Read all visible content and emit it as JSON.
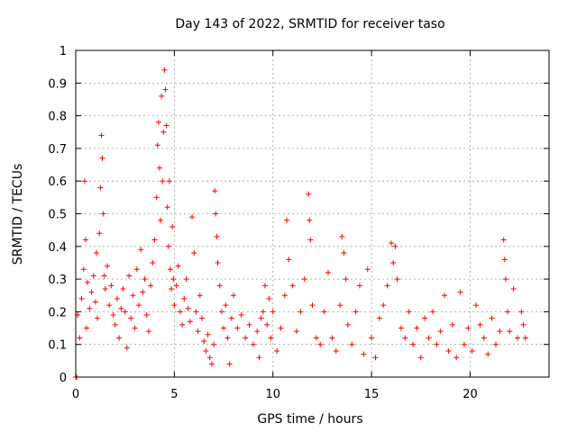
{
  "chart_data": {
    "type": "scatter",
    "title": "Day 143 of 2022, SRMTID for receiver taso",
    "xlabel": "GPS time / hours",
    "ylabel": "SRMTID / TECUs",
    "xlim": [
      0,
      24
    ],
    "ylim": [
      0,
      1
    ],
    "x_ticks": [
      0,
      5,
      10,
      15,
      20
    ],
    "x_tick_labels": [
      "0",
      "5",
      "10",
      "15",
      "20"
    ],
    "y_ticks": [
      0,
      0.1,
      0.2,
      0.3,
      0.4,
      0.5,
      0.6,
      0.7,
      0.8,
      0.9,
      1
    ],
    "y_tick_labels": [
      "0",
      "0.1",
      "0.2",
      "0.3",
      "0.4",
      "0.5",
      "0.6",
      "0.7",
      "0.8",
      "0.9",
      "1"
    ],
    "grid": true,
    "marker": "+",
    "color": "#ff0000",
    "series": [
      {
        "name": "SRMTID",
        "points": [
          [
            0.0,
            0.0
          ],
          [
            0.05,
            0.0
          ],
          [
            0.1,
            0.19
          ],
          [
            0.2,
            0.12
          ],
          [
            0.3,
            0.24
          ],
          [
            0.4,
            0.33
          ],
          [
            0.45,
            0.6
          ],
          [
            0.5,
            0.42
          ],
          [
            0.55,
            0.15
          ],
          [
            0.6,
            0.29
          ],
          [
            0.7,
            0.21
          ],
          [
            0.8,
            0.26
          ],
          [
            0.9,
            0.31
          ],
          [
            1.0,
            0.23
          ],
          [
            1.05,
            0.38
          ],
          [
            1.1,
            0.18
          ],
          [
            1.2,
            0.44
          ],
          [
            1.25,
            0.58
          ],
          [
            1.3,
            0.74
          ],
          [
            1.35,
            0.67
          ],
          [
            1.4,
            0.5
          ],
          [
            1.45,
            0.31
          ],
          [
            1.5,
            0.27
          ],
          [
            1.6,
            0.34
          ],
          [
            1.7,
            0.22
          ],
          [
            1.8,
            0.28
          ],
          [
            1.9,
            0.19
          ],
          [
            2.0,
            0.16
          ],
          [
            2.1,
            0.24
          ],
          [
            2.2,
            0.12
          ],
          [
            2.3,
            0.21
          ],
          [
            2.4,
            0.27
          ],
          [
            2.5,
            0.2
          ],
          [
            2.6,
            0.09
          ],
          [
            2.7,
            0.31
          ],
          [
            2.8,
            0.18
          ],
          [
            2.9,
            0.25
          ],
          [
            3.0,
            0.15
          ],
          [
            3.1,
            0.33
          ],
          [
            3.2,
            0.22
          ],
          [
            3.3,
            0.39
          ],
          [
            3.4,
            0.26
          ],
          [
            3.5,
            0.3
          ],
          [
            3.6,
            0.19
          ],
          [
            3.7,
            0.14
          ],
          [
            3.8,
            0.28
          ],
          [
            3.9,
            0.35
          ],
          [
            4.0,
            0.42
          ],
          [
            4.1,
            0.55
          ],
          [
            4.15,
            0.71
          ],
          [
            4.2,
            0.78
          ],
          [
            4.25,
            0.64
          ],
          [
            4.3,
            0.48
          ],
          [
            4.35,
            0.86
          ],
          [
            4.4,
            0.6
          ],
          [
            4.45,
            0.75
          ],
          [
            4.5,
            0.94
          ],
          [
            4.55,
            0.88
          ],
          [
            4.6,
            0.77
          ],
          [
            4.65,
            0.52
          ],
          [
            4.7,
            0.4
          ],
          [
            4.75,
            0.6
          ],
          [
            4.8,
            0.33
          ],
          [
            4.85,
            0.27
          ],
          [
            4.9,
            0.46
          ],
          [
            4.95,
            0.3
          ],
          [
            5.0,
            0.22
          ],
          [
            5.1,
            0.28
          ],
          [
            5.2,
            0.34
          ],
          [
            5.3,
            0.2
          ],
          [
            5.4,
            0.16
          ],
          [
            5.5,
            0.24
          ],
          [
            5.6,
            0.3
          ],
          [
            5.7,
            0.21
          ],
          [
            5.8,
            0.17
          ],
          [
            5.9,
            0.49
          ],
          [
            6.0,
            0.38
          ],
          [
            6.1,
            0.2
          ],
          [
            6.2,
            0.14
          ],
          [
            6.3,
            0.25
          ],
          [
            6.4,
            0.18
          ],
          [
            6.5,
            0.11
          ],
          [
            6.6,
            0.08
          ],
          [
            6.7,
            0.13
          ],
          [
            6.8,
            0.06
          ],
          [
            6.9,
            0.04
          ],
          [
            7.0,
            0.1
          ],
          [
            7.05,
            0.57
          ],
          [
            7.1,
            0.5
          ],
          [
            7.15,
            0.43
          ],
          [
            7.2,
            0.35
          ],
          [
            7.3,
            0.28
          ],
          [
            7.4,
            0.2
          ],
          [
            7.5,
            0.15
          ],
          [
            7.6,
            0.22
          ],
          [
            7.7,
            0.12
          ],
          [
            7.8,
            0.04
          ],
          [
            7.9,
            0.18
          ],
          [
            8.0,
            0.25
          ],
          [
            8.2,
            0.15
          ],
          [
            8.4,
            0.19
          ],
          [
            8.6,
            0.12
          ],
          [
            8.8,
            0.16
          ],
          [
            9.0,
            0.1
          ],
          [
            9.2,
            0.14
          ],
          [
            9.3,
            0.06
          ],
          [
            9.4,
            0.18
          ],
          [
            9.5,
            0.2
          ],
          [
            9.6,
            0.28
          ],
          [
            9.7,
            0.16
          ],
          [
            9.8,
            0.24
          ],
          [
            9.9,
            0.12
          ],
          [
            10.0,
            0.2
          ],
          [
            10.2,
            0.08
          ],
          [
            10.4,
            0.15
          ],
          [
            10.6,
            0.25
          ],
          [
            10.7,
            0.48
          ],
          [
            10.8,
            0.36
          ],
          [
            11.0,
            0.28
          ],
          [
            11.2,
            0.14
          ],
          [
            11.4,
            0.2
          ],
          [
            11.6,
            0.3
          ],
          [
            11.8,
            0.56
          ],
          [
            11.85,
            0.48
          ],
          [
            11.9,
            0.42
          ],
          [
            12.0,
            0.22
          ],
          [
            12.2,
            0.12
          ],
          [
            12.4,
            0.1
          ],
          [
            12.6,
            0.2
          ],
          [
            12.8,
            0.32
          ],
          [
            13.0,
            0.12
          ],
          [
            13.2,
            0.08
          ],
          [
            13.4,
            0.22
          ],
          [
            13.5,
            0.43
          ],
          [
            13.6,
            0.38
          ],
          [
            13.7,
            0.3
          ],
          [
            13.8,
            0.16
          ],
          [
            14.0,
            0.1
          ],
          [
            14.2,
            0.2
          ],
          [
            14.4,
            0.28
          ],
          [
            14.6,
            0.07
          ],
          [
            14.8,
            0.33
          ],
          [
            15.0,
            0.12
          ],
          [
            15.2,
            0.06
          ],
          [
            15.4,
            0.18
          ],
          [
            15.6,
            0.22
          ],
          [
            15.8,
            0.28
          ],
          [
            16.0,
            0.41
          ],
          [
            16.1,
            0.35
          ],
          [
            16.2,
            0.4
          ],
          [
            16.3,
            0.3
          ],
          [
            16.5,
            0.15
          ],
          [
            16.7,
            0.12
          ],
          [
            16.9,
            0.2
          ],
          [
            17.1,
            0.1
          ],
          [
            17.3,
            0.15
          ],
          [
            17.5,
            0.06
          ],
          [
            17.7,
            0.18
          ],
          [
            17.9,
            0.12
          ],
          [
            18.1,
            0.2
          ],
          [
            18.3,
            0.1
          ],
          [
            18.5,
            0.14
          ],
          [
            18.7,
            0.25
          ],
          [
            18.9,
            0.08
          ],
          [
            19.1,
            0.16
          ],
          [
            19.3,
            0.06
          ],
          [
            19.5,
            0.26
          ],
          [
            19.7,
            0.1
          ],
          [
            19.9,
            0.15
          ],
          [
            20.1,
            0.08
          ],
          [
            20.3,
            0.22
          ],
          [
            20.5,
            0.16
          ],
          [
            20.7,
            0.12
          ],
          [
            20.9,
            0.07
          ],
          [
            21.1,
            0.18
          ],
          [
            21.3,
            0.1
          ],
          [
            21.5,
            0.14
          ],
          [
            21.7,
            0.42
          ],
          [
            21.75,
            0.36
          ],
          [
            21.8,
            0.3
          ],
          [
            21.9,
            0.2
          ],
          [
            22.0,
            0.14
          ],
          [
            22.2,
            0.27
          ],
          [
            22.4,
            0.12
          ],
          [
            22.6,
            0.2
          ],
          [
            22.7,
            0.16
          ],
          [
            22.8,
            0.12
          ]
        ]
      }
    ]
  }
}
